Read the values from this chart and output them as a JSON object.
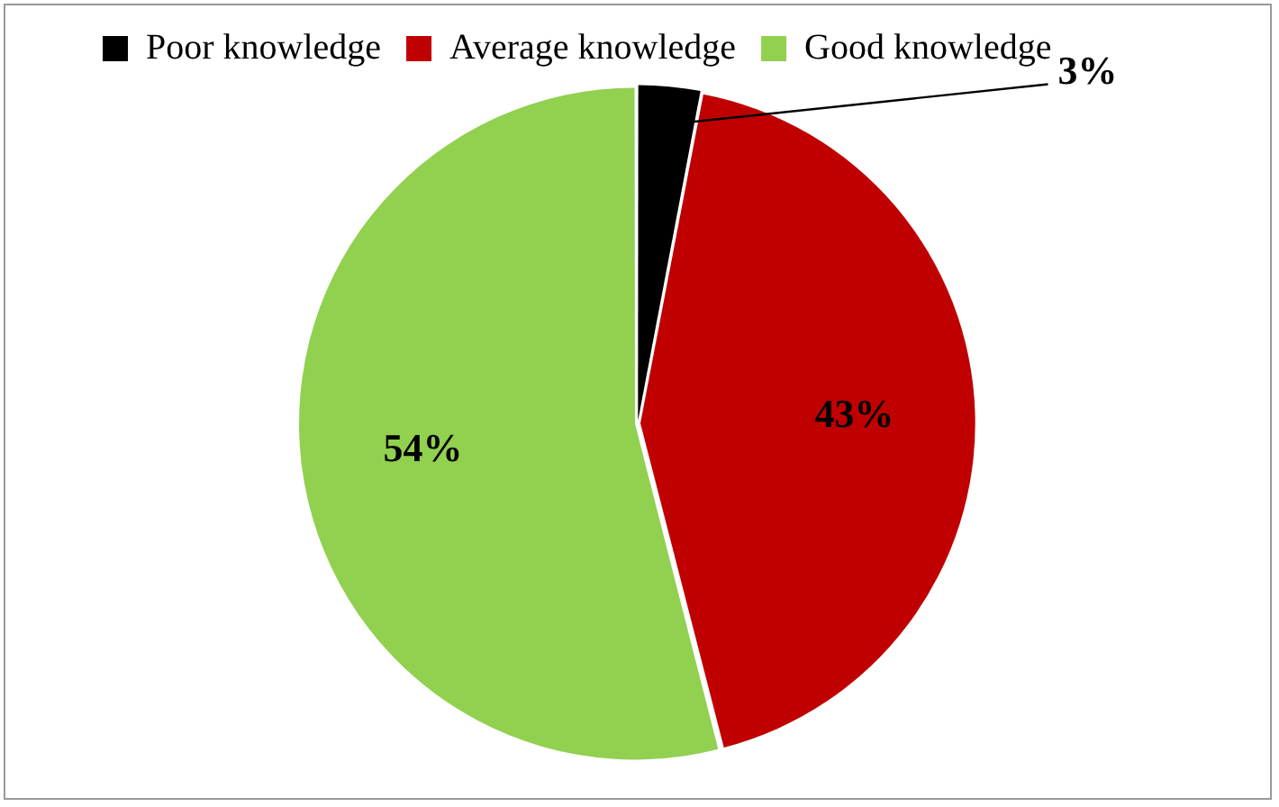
{
  "chart_data": {
    "type": "pie",
    "categories": [
      "Poor knowledge",
      "Average knowledge",
      "Good knowledge"
    ],
    "values": [
      3,
      43,
      54
    ],
    "colors": [
      "#000000",
      "#c00000",
      "#92d050"
    ],
    "value_labels": [
      "3%",
      "43%",
      "54%"
    ],
    "legend": "top"
  }
}
